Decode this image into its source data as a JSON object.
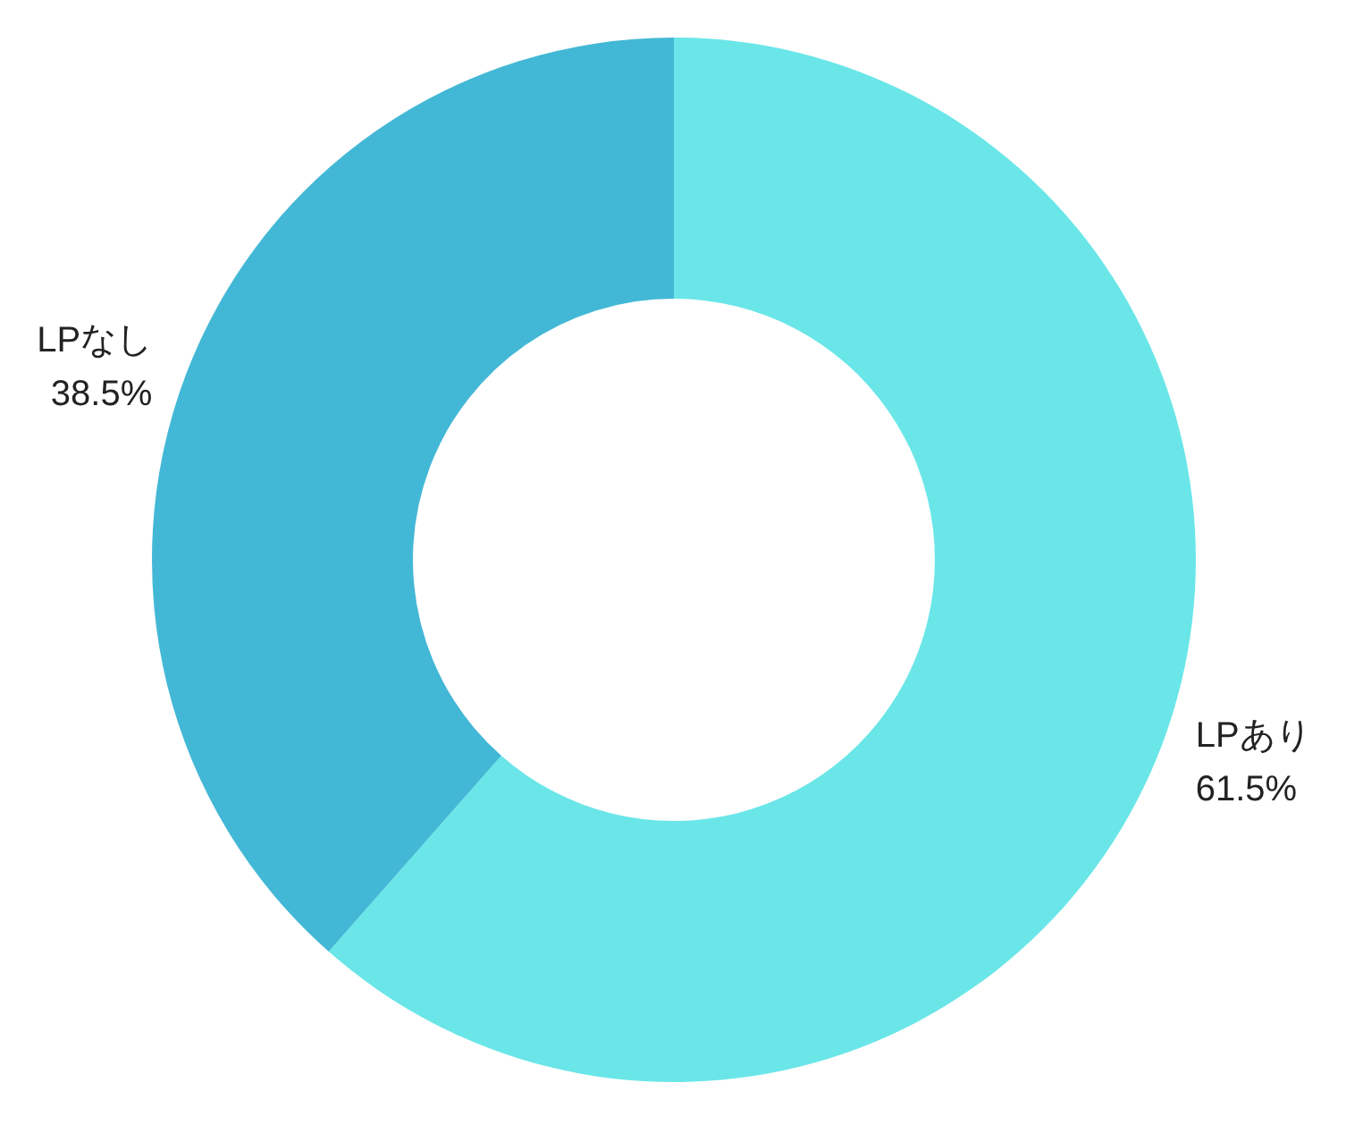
{
  "chart_data": {
    "type": "donut",
    "categories": [
      "LPあり",
      "LPなし"
    ],
    "values": [
      61.5,
      38.5
    ],
    "colors": [
      "#6ae6e8",
      "#43b8d6"
    ],
    "value_labels": [
      "61.5%",
      "38.5%"
    ]
  }
}
